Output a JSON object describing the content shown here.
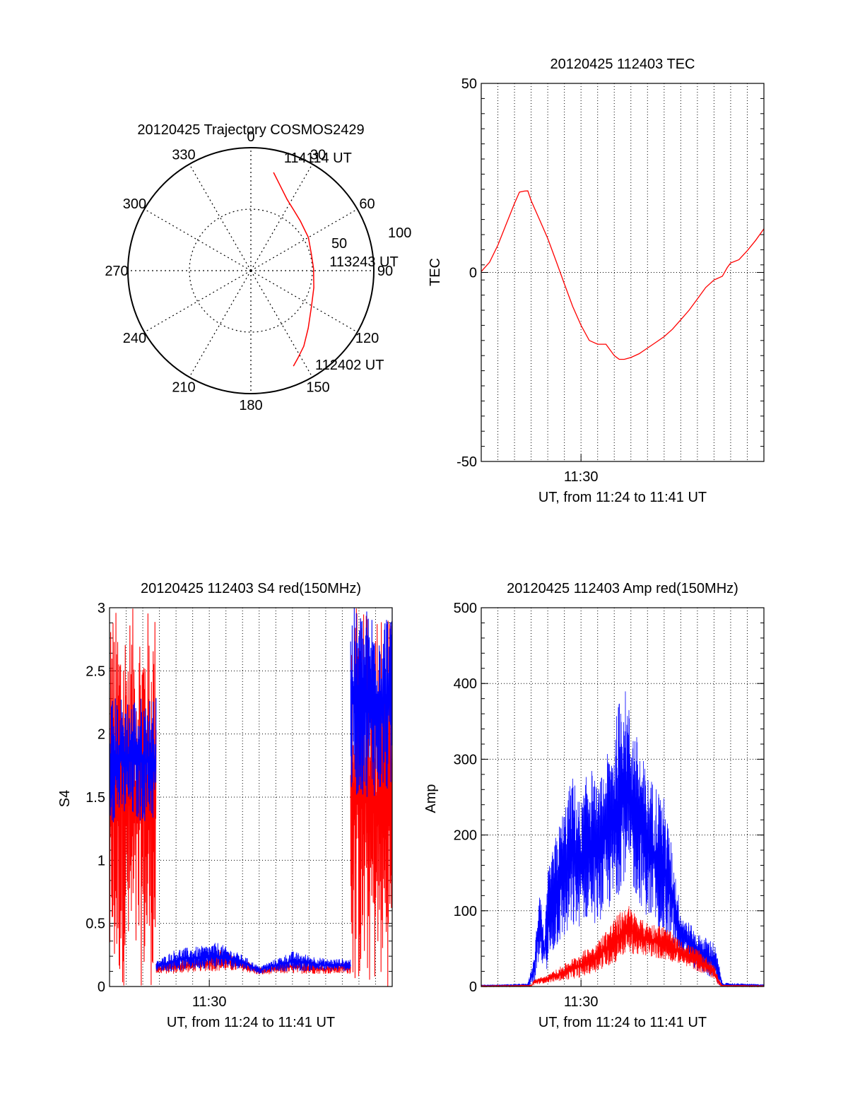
{
  "colors": {
    "red": "#ff0000",
    "blue": "#0000ff",
    "axis": "#000000",
    "grid": "#000000"
  },
  "chart_data": [
    {
      "id": "polar",
      "type": "scatter",
      "title": "20120425 Trajectory COSMOS2429",
      "projection": "polar",
      "azimuth_labels": [
        "0",
        "30",
        "60",
        "90",
        "120",
        "150",
        "180",
        "210",
        "240",
        "270",
        "300",
        "330"
      ],
      "radial_labels": [
        "50",
        "100"
      ],
      "radial_range": [
        0,
        100
      ],
      "grid": true,
      "series": [
        {
          "color": "red",
          "points": [
            {
              "az": 13,
              "r": 82
            },
            {
              "az": 20,
              "r": 72
            },
            {
              "az": 27,
              "r": 65
            },
            {
              "az": 36,
              "r": 60
            },
            {
              "az": 45,
              "r": 57
            },
            {
              "az": 60,
              "r": 54
            },
            {
              "az": 75,
              "r": 51
            },
            {
              "az": 88,
              "r": 51
            },
            {
              "az": 105,
              "r": 53
            },
            {
              "az": 120,
              "r": 57
            },
            {
              "az": 135,
              "r": 66
            },
            {
              "az": 145,
              "r": 75
            },
            {
              "az": 152,
              "r": 81
            },
            {
              "az": 156,
              "r": 85
            }
          ]
        }
      ],
      "annotations": [
        {
          "text": "114114 UT",
          "az": 17,
          "r": 92
        },
        {
          "text": "113243 UT",
          "az": 87,
          "r": 64
        },
        {
          "text": "112402 UT",
          "az": 147,
          "r": 96
        }
      ]
    },
    {
      "id": "tec",
      "type": "line",
      "title": "20120425 112403 TEC",
      "xlabel": "UT, from 11:24 to 11:41 UT",
      "ylabel": "TEC",
      "xlim": [
        0,
        17
      ],
      "ylim": [
        -50,
        50
      ],
      "x_unit": "minutes after 11:24",
      "xticks": [
        {
          "value": 6,
          "label": "11:30"
        }
      ],
      "yticks": [
        -50,
        0,
        50
      ],
      "grid": true,
      "series": [
        {
          "color": "red",
          "x": [
            0,
            0.5,
            1,
            1.5,
            2,
            2.3,
            2.6,
            2.8,
            3,
            3.5,
            4,
            4.5,
            5,
            5.5,
            6,
            6.5,
            7,
            7.5,
            8,
            8.3,
            8.6,
            9,
            9.5,
            10,
            10.5,
            11,
            11.5,
            12,
            12.5,
            13,
            13.5,
            14,
            14.5,
            14.8,
            15,
            15.5,
            16,
            16.5,
            17
          ],
          "y": [
            0,
            3,
            7,
            12,
            18,
            21,
            22,
            21,
            19,
            14,
            9,
            3,
            -3,
            -9,
            -14,
            -18,
            -19,
            -19,
            -22,
            -23,
            -23,
            -22.5,
            -21.5,
            -20,
            -18.5,
            -17,
            -15,
            -12.5,
            -10,
            -7,
            -4,
            -2,
            -1,
            1,
            2,
            3,
            6,
            8,
            12
          ]
        }
      ]
    },
    {
      "id": "s4",
      "type": "line",
      "title": "20120425 112403 S4 red(150MHz)",
      "xlabel": "UT, from 11:24 to 11:41 UT",
      "ylabel": "S4",
      "xlim": [
        0,
        17
      ],
      "ylim": [
        0,
        3
      ],
      "x_unit": "minutes after 11:24",
      "xticks": [
        {
          "value": 6,
          "label": "11:30"
        }
      ],
      "yticks": [
        0,
        0.5,
        1,
        1.5,
        2,
        2.5,
        3
      ],
      "grid": true,
      "series": [
        {
          "color": "red",
          "segments": [
            {
              "x": [
                0,
                2.8
              ],
              "min": 0,
              "max": 3
            },
            {
              "x": [
                2.8,
                14.5
              ],
              "envelope": [
                [
                  2.8,
                  0.1,
                  0.18
                ],
                [
                  4,
                  0.1,
                  0.22
                ],
                [
                  5.5,
                  0.12,
                  0.25
                ],
                [
                  6.5,
                  0.12,
                  0.3
                ],
                [
                  8,
                  0.12,
                  0.22
                ],
                [
                  9,
                  0.09,
                  0.15
                ],
                [
                  10,
                  0.1,
                  0.18
                ],
                [
                  11,
                  0.1,
                  0.22
                ],
                [
                  12,
                  0.1,
                  0.2
                ],
                [
                  13,
                  0.1,
                  0.18
                ],
                [
                  14.5,
                  0.1,
                  0.2
                ]
              ]
            },
            {
              "x": [
                14.5,
                17
              ],
              "min": 0,
              "max": 3
            }
          ]
        },
        {
          "color": "blue",
          "segments": [
            {
              "x": [
                0,
                2.8
              ],
              "min": 1.3,
              "max": 2.3
            },
            {
              "x": [
                2.8,
                14.5
              ],
              "envelope": [
                [
                  2.8,
                  0.12,
                  0.2
                ],
                [
                  4,
                  0.12,
                  0.3
                ],
                [
                  5.5,
                  0.14,
                  0.32
                ],
                [
                  6.5,
                  0.14,
                  0.35
                ],
                [
                  8,
                  0.14,
                  0.25
                ],
                [
                  9,
                  0.1,
                  0.16
                ],
                [
                  10,
                  0.12,
                  0.22
                ],
                [
                  11,
                  0.12,
                  0.28
                ],
                [
                  12,
                  0.12,
                  0.25
                ],
                [
                  13,
                  0.12,
                  0.22
                ],
                [
                  14.5,
                  0.12,
                  0.22
                ]
              ]
            },
            {
              "x": [
                14.5,
                17
              ],
              "min": 1.5,
              "max": 3
            }
          ]
        }
      ]
    },
    {
      "id": "amp",
      "type": "line",
      "title": "20120425 112403 Amp red(150MHz)",
      "xlabel": "UT, from 11:24 to 11:41 UT",
      "ylabel": "Amp",
      "xlim": [
        0,
        17
      ],
      "ylim": [
        0,
        500
      ],
      "x_unit": "minutes after 11:24",
      "xticks": [
        {
          "value": 6,
          "label": "11:30"
        }
      ],
      "yticks": [
        0,
        100,
        200,
        300,
        400,
        500
      ],
      "grid": true,
      "series": [
        {
          "color": "blue",
          "envelope": [
            [
              0,
              0,
              2
            ],
            [
              2.8,
              0,
              4
            ],
            [
              3.2,
              5,
              40
            ],
            [
              3.5,
              20,
              150
            ],
            [
              3.8,
              30,
              60
            ],
            [
              4,
              20,
              150
            ],
            [
              4.5,
              50,
              200
            ],
            [
              5,
              60,
              240
            ],
            [
              5.5,
              70,
              280
            ],
            [
              6,
              80,
              240
            ],
            [
              6.5,
              90,
              300
            ],
            [
              7,
              80,
              260
            ],
            [
              7.5,
              100,
              300
            ],
            [
              8,
              100,
              340
            ],
            [
              8.5,
              140,
              410
            ],
            [
              9,
              130,
              360
            ],
            [
              9.5,
              110,
              320
            ],
            [
              10,
              90,
              280
            ],
            [
              10.5,
              80,
              270
            ],
            [
              11,
              60,
              250
            ],
            [
              11.5,
              50,
              180
            ],
            [
              12,
              40,
              100
            ],
            [
              13,
              20,
              70
            ],
            [
              14,
              10,
              60
            ],
            [
              14.3,
              0,
              30
            ],
            [
              14.5,
              0,
              5
            ],
            [
              17,
              0,
              3
            ]
          ]
        },
        {
          "color": "red",
          "envelope": [
            [
              0,
              0,
              1
            ],
            [
              3,
              0,
              2
            ],
            [
              3.2,
              2,
              10
            ],
            [
              4,
              5,
              15
            ],
            [
              5,
              8,
              30
            ],
            [
              6,
              12,
              45
            ],
            [
              7,
              20,
              60
            ],
            [
              8,
              30,
              90
            ],
            [
              8.8,
              45,
              110
            ],
            [
              9.5,
              40,
              90
            ],
            [
              10,
              40,
              85
            ],
            [
              11,
              35,
              80
            ],
            [
              12,
              30,
              60
            ],
            [
              13,
              20,
              50
            ],
            [
              14,
              10,
              30
            ],
            [
              14.3,
              0,
              10
            ],
            [
              14.5,
              0,
              2
            ],
            [
              17,
              0,
              1
            ]
          ]
        }
      ]
    }
  ]
}
